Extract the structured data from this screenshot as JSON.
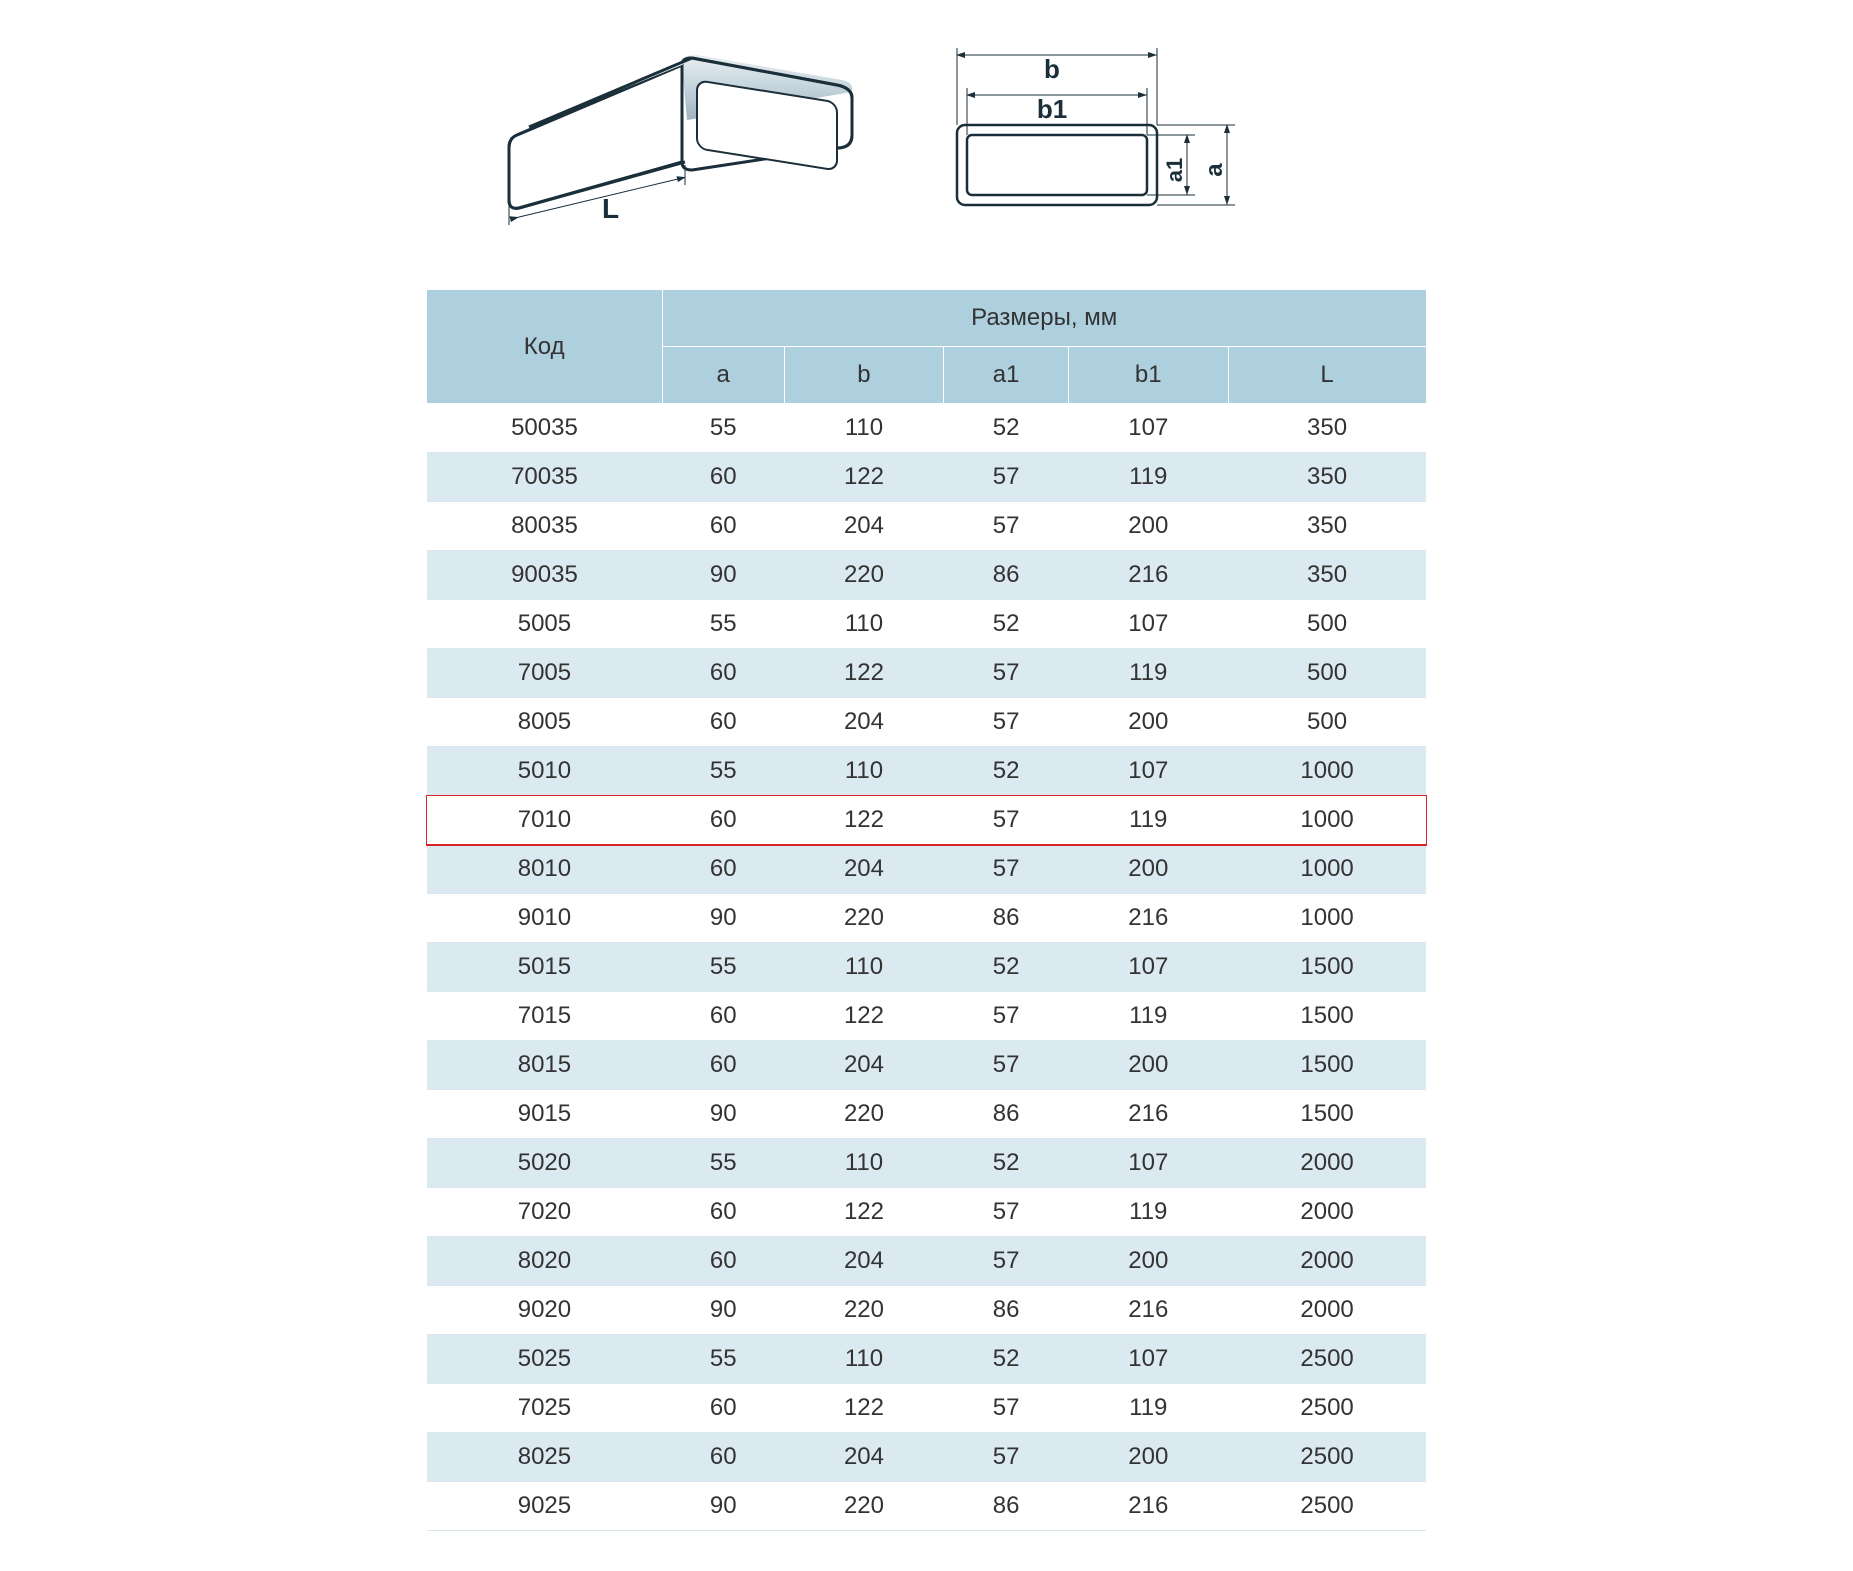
{
  "diagrams": {
    "label_L": "L",
    "label_b": "b",
    "label_b1": "b1",
    "label_a": "a",
    "label_a1": "a1",
    "colors": {
      "line": "#1a2f3a",
      "gradient_light": "#e8eef2",
      "gradient_mid": "#c5d4dc",
      "gradient_dark": "#9fb3be"
    }
  },
  "table": {
    "header_code": "Код",
    "header_dims": "Размеры, мм",
    "subheaders": {
      "a": "a",
      "b": "b",
      "a1": "a1",
      "b1": "b1",
      "L": "L"
    },
    "colors": {
      "header_bg": "#aecfde",
      "row_even_bg": "#dbe9f1",
      "row_odd_bg": "#ffffff",
      "highlight_border": "#d8232a",
      "text": "#333333",
      "border": "#d9e6ed"
    },
    "highlight_code": "7010",
    "rows": [
      {
        "code": "50035",
        "a": "55",
        "b": "110",
        "a1": "52",
        "b1": "107",
        "L": "350"
      },
      {
        "code": "70035",
        "a": "60",
        "b": "122",
        "a1": "57",
        "b1": "119",
        "L": "350"
      },
      {
        "code": "80035",
        "a": "60",
        "b": "204",
        "a1": "57",
        "b1": "200",
        "L": "350"
      },
      {
        "code": "90035",
        "a": "90",
        "b": "220",
        "a1": "86",
        "b1": "216",
        "L": "350"
      },
      {
        "code": "5005",
        "a": "55",
        "b": "110",
        "a1": "52",
        "b1": "107",
        "L": "500"
      },
      {
        "code": "7005",
        "a": "60",
        "b": "122",
        "a1": "57",
        "b1": "119",
        "L": "500"
      },
      {
        "code": "8005",
        "a": "60",
        "b": "204",
        "a1": "57",
        "b1": "200",
        "L": "500"
      },
      {
        "code": "5010",
        "a": "55",
        "b": "110",
        "a1": "52",
        "b1": "107",
        "L": "1000"
      },
      {
        "code": "7010",
        "a": "60",
        "b": "122",
        "a1": "57",
        "b1": "119",
        "L": "1000"
      },
      {
        "code": "8010",
        "a": "60",
        "b": "204",
        "a1": "57",
        "b1": "200",
        "L": "1000"
      },
      {
        "code": "9010",
        "a": "90",
        "b": "220",
        "a1": "86",
        "b1": "216",
        "L": "1000"
      },
      {
        "code": "5015",
        "a": "55",
        "b": "110",
        "a1": "52",
        "b1": "107",
        "L": "1500"
      },
      {
        "code": "7015",
        "a": "60",
        "b": "122",
        "a1": "57",
        "b1": "119",
        "L": "1500"
      },
      {
        "code": "8015",
        "a": "60",
        "b": "204",
        "a1": "57",
        "b1": "200",
        "L": "1500"
      },
      {
        "code": "9015",
        "a": "90",
        "b": "220",
        "a1": "86",
        "b1": "216",
        "L": "1500"
      },
      {
        "code": "5020",
        "a": "55",
        "b": "110",
        "a1": "52",
        "b1": "107",
        "L": "2000"
      },
      {
        "code": "7020",
        "a": "60",
        "b": "122",
        "a1": "57",
        "b1": "119",
        "L": "2000"
      },
      {
        "code": "8020",
        "a": "60",
        "b": "204",
        "a1": "57",
        "b1": "200",
        "L": "2000"
      },
      {
        "code": "9020",
        "a": "90",
        "b": "220",
        "a1": "86",
        "b1": "216",
        "L": "2000"
      },
      {
        "code": "5025",
        "a": "55",
        "b": "110",
        "a1": "52",
        "b1": "107",
        "L": "2500"
      },
      {
        "code": "7025",
        "a": "60",
        "b": "122",
        "a1": "57",
        "b1": "119",
        "L": "2500"
      },
      {
        "code": "8025",
        "a": "60",
        "b": "204",
        "a1": "57",
        "b1": "200",
        "L": "2500"
      },
      {
        "code": "9025",
        "a": "90",
        "b": "220",
        "a1": "86",
        "b1": "216",
        "L": "2500"
      }
    ]
  }
}
